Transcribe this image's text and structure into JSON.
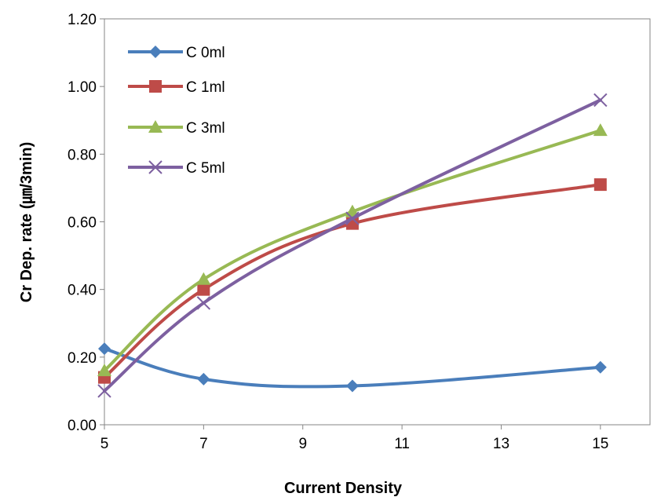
{
  "chart_data": {
    "type": "line",
    "title": "",
    "xlabel": "Current Density",
    "ylabel": "Cr Dep. rate (㎛/3min)",
    "xlim": [
      5,
      16
    ],
    "ylim": [
      0,
      1.2
    ],
    "x_ticks": [
      "5",
      "7",
      "9",
      "11",
      "13",
      "15"
    ],
    "y_ticks": [
      "0.00",
      "0.20",
      "0.40",
      "0.60",
      "0.80",
      "1.00",
      "1.20"
    ],
    "x": [
      5,
      7,
      10,
      15
    ],
    "legend_position": "top-left",
    "grid": false,
    "series": [
      {
        "name": "C 0ml",
        "color": "#4a7ebb",
        "marker": "diamond",
        "values": [
          0.225,
          0.135,
          0.115,
          0.17
        ]
      },
      {
        "name": "C 1ml",
        "color": "#be4b48",
        "marker": "square",
        "values": [
          0.14,
          0.4,
          0.595,
          0.71
        ]
      },
      {
        "name": "C 3ml",
        "color": "#98b954",
        "marker": "triangle",
        "values": [
          0.16,
          0.43,
          0.63,
          0.87
        ]
      },
      {
        "name": "C 5ml",
        "color": "#7d60a0",
        "marker": "x",
        "values": [
          0.1,
          0.36,
          0.61,
          0.96
        ]
      }
    ]
  }
}
